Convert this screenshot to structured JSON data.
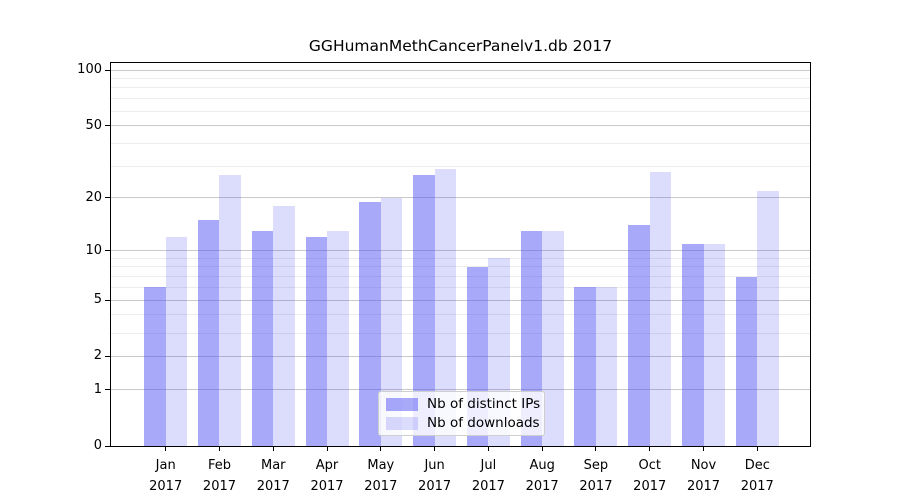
{
  "figure": {
    "title": "GGHumanMethCancerPanelv1.db 2017"
  },
  "chart_data": {
    "type": "bar",
    "title": "GGHumanMethCancerPanelv1.db 2017",
    "categories": [
      "Jan",
      "Feb",
      "Mar",
      "Apr",
      "May",
      "Jun",
      "Jul",
      "Aug",
      "Sep",
      "Oct",
      "Nov",
      "Dec"
    ],
    "category_year": "2017",
    "series": [
      {
        "name": "Nb of distinct IPs",
        "color": "rgba(80,80,245,0.49)",
        "values": [
          6,
          15,
          13,
          12,
          19,
          27,
          8,
          13,
          6,
          14,
          11,
          7
        ]
      },
      {
        "name": "Nb of downloads",
        "color": "rgba(80,80,245,0.20)",
        "values": [
          12,
          27,
          18,
          13,
          20,
          29,
          9,
          13,
          6,
          28,
          11,
          22
        ]
      }
    ],
    "xlabel": "",
    "ylabel": "",
    "yscale": "log1p",
    "ylim": [
      0,
      108
    ],
    "yticks": [
      0,
      1,
      2,
      5,
      10,
      20,
      50,
      100
    ],
    "minor_yticks": [
      3,
      4,
      6,
      7,
      8,
      9,
      30,
      40,
      60,
      70,
      80,
      90
    ],
    "grid": true,
    "legend": {
      "position": "inside-bottom-center",
      "labels": [
        "Nb of distinct IPs",
        "Nb of downloads"
      ]
    }
  },
  "style": {
    "major_grid_color": "#c9c9c9",
    "minor_grid_color": "#ececec",
    "axis_color": "#000000",
    "text_color": "#000000",
    "background": "#ffffff"
  }
}
